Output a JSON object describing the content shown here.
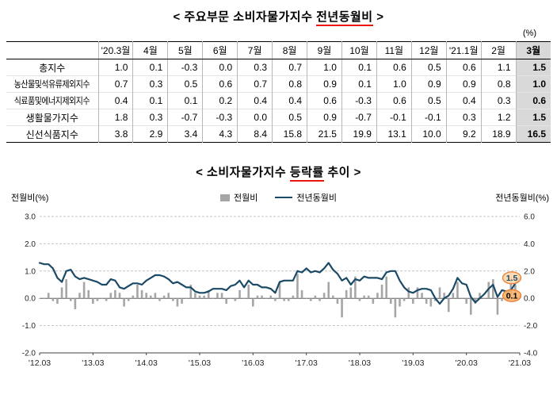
{
  "page": {
    "unit_label": "(%)",
    "accent_red": "#e8160c",
    "highlight_gray": "#d9d9d9",
    "annotation_orange": "#ed7d31"
  },
  "table_section": {
    "title": {
      "prefix": "< 주요부문 소비자물가지수 ",
      "underlined": "전년동월비",
      "suffix": " >"
    },
    "columns": [
      "'20.3월",
      "4월",
      "5월",
      "6월",
      "7월",
      "8월",
      "9월",
      "10월",
      "11월",
      "12월",
      "'21.1월",
      "2월",
      "3월"
    ],
    "rows": [
      {
        "label": "총지수",
        "values": [
          1.0,
          0.1,
          -0.3,
          0.0,
          0.3,
          0.7,
          1.0,
          0.1,
          0.6,
          0.5,
          0.6,
          1.1,
          1.5
        ]
      },
      {
        "label": "농산물및석유류제외지수",
        "values": [
          0.7,
          0.3,
          0.5,
          0.6,
          0.7,
          0.8,
          0.9,
          0.1,
          1.0,
          0.9,
          0.9,
          0.8,
          1.0
        ]
      },
      {
        "label": "식료품및에너지제외지수",
        "values": [
          0.4,
          0.1,
          0.1,
          0.2,
          0.4,
          0.4,
          0.6,
          -0.3,
          0.6,
          0.5,
          0.4,
          0.3,
          0.6
        ]
      },
      {
        "label": "생활물가지수",
        "values": [
          1.8,
          0.3,
          -0.7,
          -0.3,
          0.0,
          0.5,
          0.9,
          -0.7,
          -0.1,
          -0.1,
          0.3,
          1.2,
          1.5
        ]
      },
      {
        "label": "신선식품지수",
        "values": [
          3.8,
          2.9,
          3.4,
          4.3,
          8.4,
          15.8,
          21.5,
          19.9,
          13.1,
          10.0,
          9.2,
          18.9,
          16.5
        ]
      }
    ]
  },
  "chart_section": {
    "title": {
      "prefix": "< 소비자물가지수 ",
      "underlined": "등락률",
      "suffix": " 추이 >"
    },
    "left_axis_title": "전월비(%)",
    "right_axis_title": "전년동월비(%)",
    "legend": [
      "전월비",
      "전년동월비"
    ]
  },
  "chart_data": {
    "type": "combo",
    "x_monthly_start": "2012-03",
    "x_tick_every": 12,
    "x_tick_labels": [
      "'12.03",
      "'13.03",
      "'14.03",
      "'15.03",
      "'16.03",
      "'17.03",
      "'18.03",
      "'19.03",
      "'20.03",
      "'21.03"
    ],
    "left_axis": {
      "label": "전월비(%)",
      "min": -2.0,
      "max": 3.0,
      "ticks": [
        3.0,
        2.0,
        1.0,
        0.0,
        -1.0,
        -2.0
      ]
    },
    "right_axis": {
      "label": "전년동월비(%)",
      "min": -4.0,
      "max": 6.0,
      "ticks": [
        6.0,
        4.0,
        2.0,
        0.0,
        -2.0,
        -4.0
      ]
    },
    "grid": "horizontal-dashed",
    "legend_position": "top-center",
    "series": [
      {
        "name": "전월비",
        "type": "bar",
        "axis": "left",
        "color": "#a6a6a6",
        "values": [
          0.0,
          0.0,
          0.2,
          -0.1,
          -0.2,
          0.4,
          0.7,
          -0.1,
          -0.4,
          0.2,
          0.6,
          0.3,
          -0.2,
          -0.1,
          0.0,
          -0.1,
          0.2,
          0.3,
          0.2,
          -0.3,
          -0.1,
          0.1,
          0.5,
          0.3,
          0.2,
          0.1,
          0.2,
          -0.1,
          0.1,
          0.2,
          -0.1,
          -0.3,
          -0.2,
          0.0,
          0.5,
          0.2,
          0.1,
          0.1,
          0.3,
          0.0,
          0.2,
          0.2,
          -0.2,
          0.0,
          -0.1,
          0.3,
          0.0,
          0.5,
          -0.3,
          0.1,
          0.1,
          0.0,
          0.1,
          -0.1,
          0.6,
          -0.1,
          -0.1,
          0.1,
          0.9,
          0.3,
          0.0,
          -0.1,
          0.1,
          -0.1,
          0.2,
          0.6,
          0.1,
          -0.2,
          -0.7,
          0.3,
          0.4,
          0.8,
          -0.1,
          0.1,
          0.1,
          -0.2,
          0.2,
          0.5,
          0.8,
          -0.2,
          -0.7,
          -0.3,
          -0.1,
          0.4,
          -0.2,
          0.4,
          0.2,
          -0.2,
          -0.3,
          -0.1,
          0.4,
          0.2,
          -0.5,
          0.2,
          0.6,
          0.0,
          -0.2,
          -0.6,
          -0.2,
          0.2,
          0.0,
          0.6,
          0.7,
          -0.6,
          -0.1,
          0.2,
          0.8,
          0.5,
          0.1
        ]
      },
      {
        "name": "전년동월비",
        "type": "line",
        "axis": "right",
        "color": "#1b4a66",
        "values": [
          2.6,
          2.5,
          2.5,
          2.2,
          1.5,
          1.2,
          2.0,
          2.1,
          1.6,
          1.4,
          1.5,
          1.4,
          1.3,
          1.2,
          1.0,
          1.0,
          1.4,
          1.3,
          0.8,
          0.7,
          0.9,
          1.1,
          1.1,
          1.0,
          1.3,
          1.5,
          1.7,
          1.7,
          1.6,
          1.4,
          1.1,
          1.2,
          1.0,
          0.8,
          0.8,
          0.5,
          0.4,
          0.4,
          0.5,
          0.7,
          0.7,
          0.7,
          0.6,
          0.9,
          1.0,
          1.3,
          0.8,
          1.3,
          1.0,
          1.0,
          0.8,
          0.8,
          0.7,
          0.4,
          1.2,
          1.3,
          1.3,
          1.3,
          2.0,
          1.9,
          2.2,
          1.9,
          2.0,
          1.9,
          2.2,
          2.6,
          2.1,
          1.8,
          1.3,
          1.5,
          1.0,
          1.4,
          1.3,
          1.6,
          1.5,
          1.5,
          1.5,
          1.4,
          1.9,
          2.0,
          2.0,
          1.3,
          0.8,
          0.5,
          0.4,
          0.6,
          0.7,
          0.7,
          0.6,
          0.0,
          -0.4,
          0.0,
          0.2,
          0.7,
          1.5,
          1.1,
          1.0,
          0.1,
          -0.3,
          0.0,
          0.3,
          0.7,
          1.0,
          0.1,
          0.6,
          0.5,
          0.6,
          1.1,
          1.5
        ]
      }
    ],
    "annotations": [
      {
        "text": "1.5",
        "axis": "right",
        "value": 1.5,
        "text_color": "#1b4a66",
        "fill": "#fbd7ab"
      },
      {
        "text": "0.1",
        "axis": "left",
        "value": 0.1,
        "text_color": "#000000",
        "fill": "#f6b26b"
      }
    ]
  }
}
